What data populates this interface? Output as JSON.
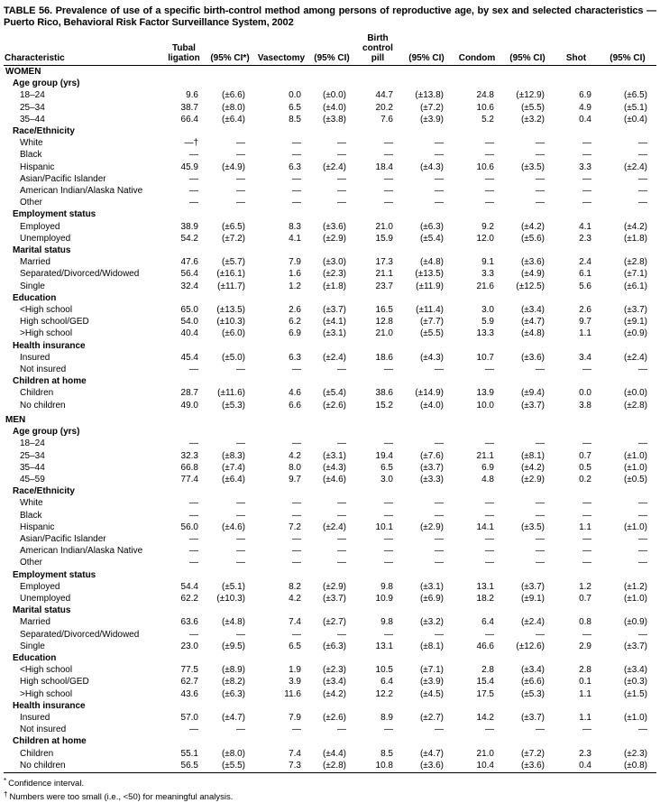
{
  "document": {
    "title": "TABLE 56. Prevalence of use of a specific birth-control method among persons of reproductive age, by sex and selected characteristics — Puerto Rico, Behavioral Risk Factor Surveillance System, 2002",
    "footnotes": [
      {
        "marker": "*",
        "text": "Confidence interval."
      },
      {
        "marker": "†",
        "text": "Numbers were too small (i.e., <50) for meaningful analysis."
      }
    ]
  },
  "table": {
    "columns": [
      {
        "id": "characteristic",
        "lines": [
          "Characteristic"
        ]
      },
      {
        "id": "tubal-ligation",
        "lines": [
          "Tubal",
          "ligation"
        ]
      },
      {
        "id": "ci-tubal",
        "lines": [
          "(95% CI*)"
        ]
      },
      {
        "id": "vasectomy",
        "lines": [
          "Vasectomy"
        ]
      },
      {
        "id": "ci-vasectomy",
        "lines": [
          "(95% CI)"
        ]
      },
      {
        "id": "birth-control-pill",
        "lines": [
          "Birth",
          "control",
          "pill"
        ]
      },
      {
        "id": "ci-pill",
        "lines": [
          "(95% CI)"
        ]
      },
      {
        "id": "condom",
        "lines": [
          "Condom"
        ]
      },
      {
        "id": "ci-condom",
        "lines": [
          "(95% CI)"
        ]
      },
      {
        "id": "shot",
        "lines": [
          "Shot"
        ]
      },
      {
        "id": "ci-shot",
        "lines": [
          "(95% CI)"
        ]
      }
    ],
    "sections": [
      {
        "label": "WOMEN",
        "groups": [
          {
            "label": "Age group (yrs)",
            "rows": [
              {
                "label": "18–24",
                "values": [
                  "9.6",
                  "(±6.6)",
                  "0.0",
                  "(±0.0)",
                  "44.7",
                  "(±13.8)",
                  "24.8",
                  "(±12.9)",
                  "6.9",
                  "(±6.5)"
                ]
              },
              {
                "label": "25–34",
                "values": [
                  "38.7",
                  "(±8.0)",
                  "6.5",
                  "(±4.0)",
                  "20.2",
                  "(±7.2)",
                  "10.6",
                  "(±5.5)",
                  "4.9",
                  "(±5.1)"
                ]
              },
              {
                "label": "35–44",
                "values": [
                  "66.4",
                  "(±6.4)",
                  "8.5",
                  "(±3.8)",
                  "7.6",
                  "(±3.9)",
                  "5.2",
                  "(±3.2)",
                  "0.4",
                  "(±0.4)"
                ]
              }
            ]
          },
          {
            "label": "Race/Ethnicity",
            "rows": [
              {
                "label": "White",
                "values": [
                  "—†",
                  "—",
                  "—",
                  "—",
                  "—",
                  "—",
                  "—",
                  "—",
                  "—",
                  "—"
                ]
              },
              {
                "label": "Black",
                "values": [
                  "—",
                  "—",
                  "—",
                  "—",
                  "—",
                  "—",
                  "—",
                  "—",
                  "—",
                  "—"
                ]
              },
              {
                "label": "Hispanic",
                "values": [
                  "45.9",
                  "(±4.9)",
                  "6.3",
                  "(±2.4)",
                  "18.4",
                  "(±4.3)",
                  "10.6",
                  "(±3.5)",
                  "3.3",
                  "(±2.4)"
                ]
              },
              {
                "label": "Asian/Pacific Islander",
                "values": [
                  "—",
                  "—",
                  "—",
                  "—",
                  "—",
                  "—",
                  "—",
                  "—",
                  "—",
                  "—"
                ]
              },
              {
                "label": "American Indian/Alaska Native",
                "values": [
                  "—",
                  "—",
                  "—",
                  "—",
                  "—",
                  "—",
                  "—",
                  "—",
                  "—",
                  "—"
                ]
              },
              {
                "label": "Other",
                "values": [
                  "—",
                  "—",
                  "—",
                  "—",
                  "—",
                  "—",
                  "—",
                  "—",
                  "—",
                  "—"
                ]
              }
            ]
          },
          {
            "label": "Employment status",
            "rows": [
              {
                "label": "Employed",
                "values": [
                  "38.9",
                  "(±6.5)",
                  "8.3",
                  "(±3.6)",
                  "21.0",
                  "(±6.3)",
                  "9.2",
                  "(±4.2)",
                  "4.1",
                  "(±4.2)"
                ]
              },
              {
                "label": "Unemployed",
                "values": [
                  "54.2",
                  "(±7.2)",
                  "4.1",
                  "(±2.9)",
                  "15.9",
                  "(±5.4)",
                  "12.0",
                  "(±5.6)",
                  "2.3",
                  "(±1.8)"
                ]
              }
            ]
          },
          {
            "label": "Marital status",
            "rows": [
              {
                "label": "Married",
                "values": [
                  "47.6",
                  "(±5.7)",
                  "7.9",
                  "(±3.0)",
                  "17.3",
                  "(±4.8)",
                  "9.1",
                  "(±3.6)",
                  "2.4",
                  "(±2.8)"
                ]
              },
              {
                "label": "Separated/Divorced/Widowed",
                "values": [
                  "56.4",
                  "(±16.1)",
                  "1.6",
                  "(±2.3)",
                  "21.1",
                  "(±13.5)",
                  "3.3",
                  "(±4.9)",
                  "6.1",
                  "(±7.1)"
                ]
              },
              {
                "label": "Single",
                "values": [
                  "32.4",
                  "(±11.7)",
                  "1.2",
                  "(±1.8)",
                  "23.7",
                  "(±11.9)",
                  "21.6",
                  "(±12.5)",
                  "5.6",
                  "(±6.1)"
                ]
              }
            ]
          },
          {
            "label": "Education",
            "rows": [
              {
                "label": "<High school",
                "values": [
                  "65.0",
                  "(±13.5)",
                  "2.6",
                  "(±3.7)",
                  "16.5",
                  "(±11.4)",
                  "3.0",
                  "(±3.4)",
                  "2.6",
                  "(±3.7)"
                ]
              },
              {
                "label": "High school/GED",
                "values": [
                  "54.0",
                  "(±10.3)",
                  "6.2",
                  "(±4.1)",
                  "12.8",
                  "(±7.7)",
                  "5.9",
                  "(±4.7)",
                  "9.7",
                  "(±9.1)"
                ]
              },
              {
                "label": ">High school",
                "values": [
                  "40.4",
                  "(±6.0)",
                  "6.9",
                  "(±3.1)",
                  "21.0",
                  "(±5.5)",
                  "13.3",
                  "(±4.8)",
                  "1.1",
                  "(±0.9)"
                ]
              }
            ]
          },
          {
            "label": "Health insurance",
            "rows": [
              {
                "label": "Insured",
                "values": [
                  "45.4",
                  "(±5.0)",
                  "6.3",
                  "(±2.4)",
                  "18.6",
                  "(±4.3)",
                  "10.7",
                  "(±3.6)",
                  "3.4",
                  "(±2.4)"
                ]
              },
              {
                "label": "Not insured",
                "values": [
                  "—",
                  "—",
                  "—",
                  "—",
                  "—",
                  "—",
                  "—",
                  "—",
                  "—",
                  "—"
                ]
              }
            ]
          },
          {
            "label": "Children at home",
            "rows": [
              {
                "label": "Children",
                "values": [
                  "28.7",
                  "(±11.6)",
                  "4.6",
                  "(±5.4)",
                  "38.6",
                  "(±14.9)",
                  "13.9",
                  "(±9.4)",
                  "0.0",
                  "(±0.0)"
                ]
              },
              {
                "label": "No children",
                "values": [
                  "49.0",
                  "(±5.3)",
                  "6.6",
                  "(±2.6)",
                  "15.2",
                  "(±4.0)",
                  "10.0",
                  "(±3.7)",
                  "3.8",
                  "(±2.8)"
                ]
              }
            ]
          }
        ]
      },
      {
        "label": "MEN",
        "groups": [
          {
            "label": "Age group (yrs)",
            "rows": [
              {
                "label": "18–24",
                "values": [
                  "—",
                  "—",
                  "—",
                  "—",
                  "—",
                  "—",
                  "—",
                  "—",
                  "—",
                  "—"
                ]
              },
              {
                "label": "25–34",
                "values": [
                  "32.3",
                  "(±8.3)",
                  "4.2",
                  "(±3.1)",
                  "19.4",
                  "(±7.6)",
                  "21.1",
                  "(±8.1)",
                  "0.7",
                  "(±1.0)"
                ]
              },
              {
                "label": "35–44",
                "values": [
                  "66.8",
                  "(±7.4)",
                  "8.0",
                  "(±4.3)",
                  "6.5",
                  "(±3.7)",
                  "6.9",
                  "(±4.2)",
                  "0.5",
                  "(±1.0)"
                ]
              },
              {
                "label": "45–59",
                "values": [
                  "77.4",
                  "(±6.4)",
                  "9.7",
                  "(±4.6)",
                  "3.0",
                  "(±3.3)",
                  "4.8",
                  "(±2.9)",
                  "0.2",
                  "(±0.5)"
                ]
              }
            ]
          },
          {
            "label": "Race/Ethnicity",
            "rows": [
              {
                "label": "White",
                "values": [
                  "—",
                  "—",
                  "—",
                  "—",
                  "—",
                  "—",
                  "—",
                  "—",
                  "—",
                  "—"
                ]
              },
              {
                "label": "Black",
                "values": [
                  "—",
                  "—",
                  "—",
                  "—",
                  "—",
                  "—",
                  "—",
                  "—",
                  "—",
                  "—"
                ]
              },
              {
                "label": "Hispanic",
                "values": [
                  "56.0",
                  "(±4.6)",
                  "7.2",
                  "(±2.4)",
                  "10.1",
                  "(±2.9)",
                  "14.1",
                  "(±3.5)",
                  "1.1",
                  "(±1.0)"
                ]
              },
              {
                "label": "Asian/Pacific Islander",
                "values": [
                  "—",
                  "—",
                  "—",
                  "—",
                  "—",
                  "—",
                  "—",
                  "—",
                  "—",
                  "—"
                ]
              },
              {
                "label": "American Indian/Alaska Native",
                "values": [
                  "—",
                  "—",
                  "—",
                  "—",
                  "—",
                  "—",
                  "—",
                  "—",
                  "—",
                  "—"
                ]
              },
              {
                "label": "Other",
                "values": [
                  "—",
                  "—",
                  "—",
                  "—",
                  "—",
                  "—",
                  "—",
                  "—",
                  "—",
                  "—"
                ]
              }
            ]
          },
          {
            "label": "Employment status",
            "rows": [
              {
                "label": "Employed",
                "values": [
                  "54.4",
                  "(±5.1)",
                  "8.2",
                  "(±2.9)",
                  "9.8",
                  "(±3.1)",
                  "13.1",
                  "(±3.7)",
                  "1.2",
                  "(±1.2)"
                ]
              },
              {
                "label": "Unemployed",
                "values": [
                  "62.2",
                  "(±10.3)",
                  "4.2",
                  "(±3.7)",
                  "10.9",
                  "(±6.9)",
                  "18.2",
                  "(±9.1)",
                  "0.7",
                  "(±1.0)"
                ]
              }
            ]
          },
          {
            "label": "Marital status",
            "rows": [
              {
                "label": "Married",
                "values": [
                  "63.6",
                  "(±4.8)",
                  "7.4",
                  "(±2.7)",
                  "9.8",
                  "(±3.2)",
                  "6.4",
                  "(±2.4)",
                  "0.8",
                  "(±0.9)"
                ]
              },
              {
                "label": "Separated/Divorced/Widowed",
                "values": [
                  "—",
                  "—",
                  "—",
                  "—",
                  "—",
                  "—",
                  "—",
                  "—",
                  "—",
                  "—"
                ]
              },
              {
                "label": "Single",
                "values": [
                  "23.0",
                  "(±9.5)",
                  "6.5",
                  "(±6.3)",
                  "13.1",
                  "(±8.1)",
                  "46.6",
                  "(±12.6)",
                  "2.9",
                  "(±3.7)"
                ]
              }
            ]
          },
          {
            "label": "Education",
            "rows": [
              {
                "label": "<High school",
                "values": [
                  "77.5",
                  "(±8.9)",
                  "1.9",
                  "(±2.3)",
                  "10.5",
                  "(±7.1)",
                  "2.8",
                  "(±3.4)",
                  "2.8",
                  "(±3.4)"
                ]
              },
              {
                "label": "High school/GED",
                "values": [
                  "62.7",
                  "(±8.2)",
                  "3.9",
                  "(±3.4)",
                  "6.4",
                  "(±3.9)",
                  "15.4",
                  "(±6.6)",
                  "0.1",
                  "(±0.3)"
                ]
              },
              {
                "label": ">High school",
                "values": [
                  "43.6",
                  "(±6.3)",
                  "11.6",
                  "(±4.2)",
                  "12.2",
                  "(±4.5)",
                  "17.5",
                  "(±5.3)",
                  "1.1",
                  "(±1.5)"
                ]
              }
            ]
          },
          {
            "label": "Health insurance",
            "rows": [
              {
                "label": "Insured",
                "values": [
                  "57.0",
                  "(±4.7)",
                  "7.9",
                  "(±2.6)",
                  "8.9",
                  "(±2.7)",
                  "14.2",
                  "(±3.7)",
                  "1.1",
                  "(±1.0)"
                ]
              },
              {
                "label": "Not insured",
                "values": [
                  "—",
                  "—",
                  "—",
                  "—",
                  "—",
                  "—",
                  "—",
                  "—",
                  "—",
                  "—"
                ]
              }
            ]
          },
          {
            "label": "Children at home",
            "rows": [
              {
                "label": "Children",
                "values": [
                  "55.1",
                  "(±8.0)",
                  "7.4",
                  "(±4.4)",
                  "8.5",
                  "(±4.7)",
                  "21.0",
                  "(±7.2)",
                  "2.3",
                  "(±2.3)"
                ]
              },
              {
                "label": "No children",
                "values": [
                  "56.5",
                  "(±5.5)",
                  "7.3",
                  "(±2.8)",
                  "10.8",
                  "(±3.6)",
                  "10.4",
                  "(±3.6)",
                  "0.4",
                  "(±0.8)"
                ]
              }
            ]
          }
        ]
      }
    ]
  }
}
